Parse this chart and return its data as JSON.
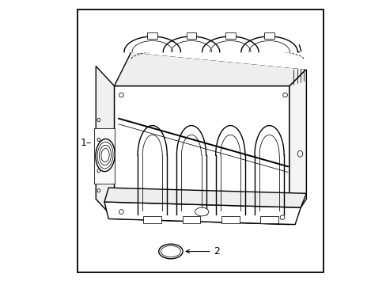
{
  "background_color": "#ffffff",
  "border_color": "#000000",
  "line_color": "#000000",
  "figsize": [
    4.89,
    3.6
  ],
  "dpi": 100,
  "label_1_text": "1–",
  "label_2_text": "2",
  "lw_main": 1.0,
  "lw_thin": 0.55,
  "lw_thick": 1.4
}
